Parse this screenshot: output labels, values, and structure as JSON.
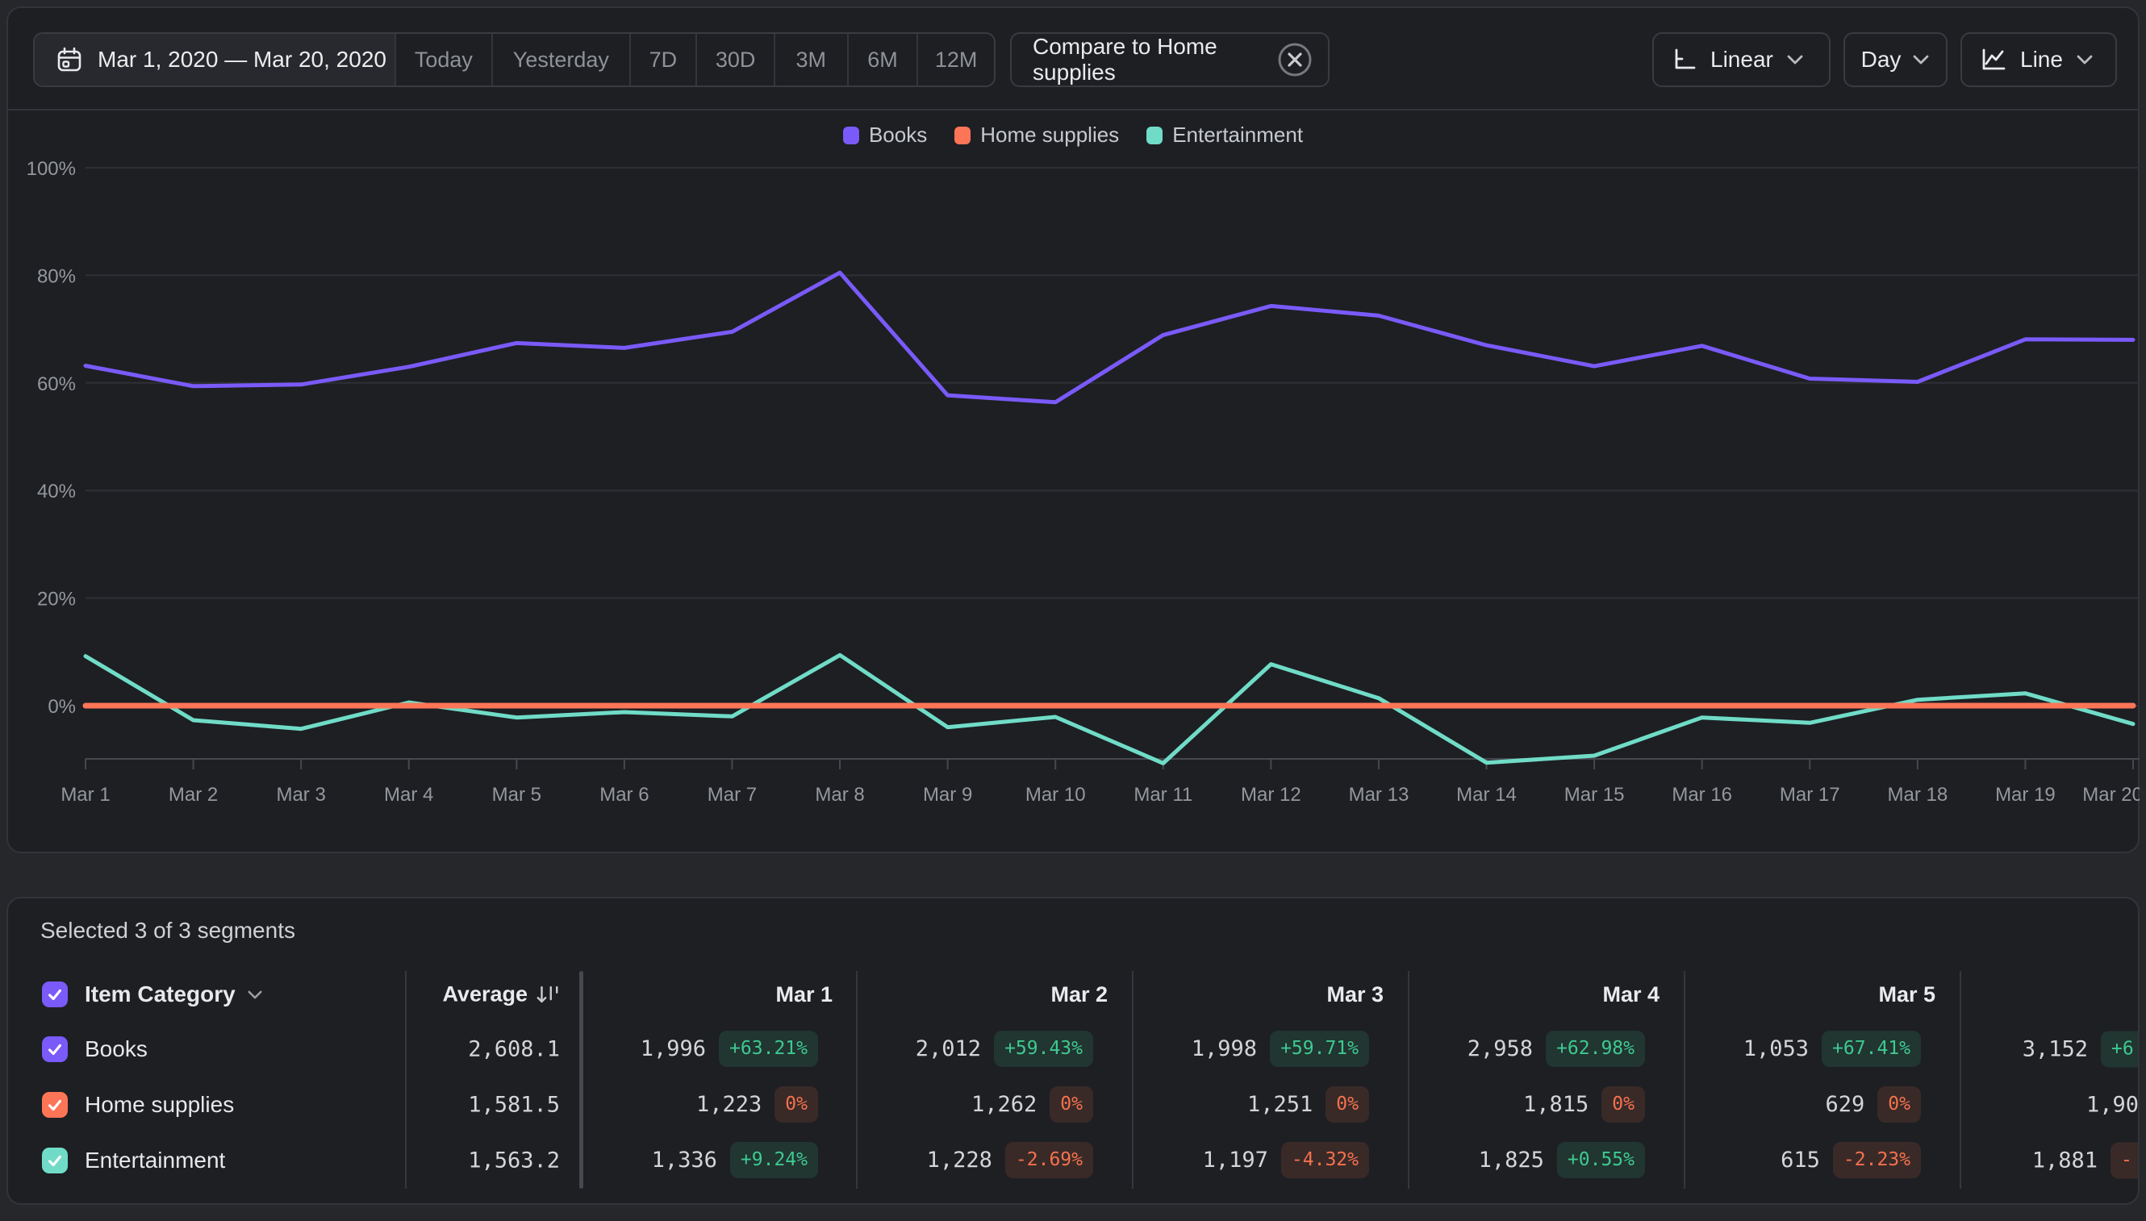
{
  "toolbar": {
    "date_range": "Mar 1, 2020 — Mar 20, 2020",
    "presets": [
      "Today",
      "Yesterday",
      "7D",
      "30D",
      "3M",
      "6M",
      "12M"
    ],
    "compare_label": "Compare to Home supplies",
    "scale_label": "Linear",
    "granularity_label": "Day",
    "chart_type_label": "Line"
  },
  "chart_data": {
    "type": "line",
    "title": "",
    "legend_position": "top",
    "grid": "horizontal",
    "y_axis": {
      "tick_labels": [
        "0%",
        "20%",
        "40%",
        "60%",
        "80%",
        "100%"
      ],
      "ticks": [
        0,
        20,
        40,
        60,
        80,
        100
      ],
      "format": "percent"
    },
    "x": [
      "Mar 1",
      "Mar 2",
      "Mar 3",
      "Mar 4",
      "Mar 5",
      "Mar 6",
      "Mar 7",
      "Mar 8",
      "Mar 9",
      "Mar 10",
      "Mar 11",
      "Mar 12",
      "Mar 13",
      "Mar 14",
      "Mar 15",
      "Mar 16",
      "Mar 17",
      "Mar 18",
      "Mar 19",
      "Mar 20"
    ],
    "series": [
      {
        "name": "Books",
        "color": "#7a5af8",
        "values": [
          63.2,
          59.4,
          59.7,
          63.0,
          67.4,
          66.5,
          69.5,
          80.5,
          57.7,
          56.4,
          68.9,
          74.3,
          72.5,
          67.0,
          63.1,
          66.9,
          60.8,
          60.2,
          68.1,
          68.0
        ]
      },
      {
        "name": "Home supplies",
        "color": "#fc7557",
        "values": [
          0,
          0,
          0,
          0,
          0,
          0,
          0,
          0,
          0,
          0,
          0,
          0,
          0,
          0,
          0,
          0,
          0,
          0,
          0,
          0
        ]
      },
      {
        "name": "Entertainment",
        "color": "#70dcc7",
        "values": [
          9.2,
          -2.7,
          -4.3,
          0.6,
          -2.2,
          -1.2,
          -2.0,
          9.4,
          -4.0,
          -2.1,
          -10.7,
          7.7,
          1.4,
          -10.6,
          -9.3,
          -2.2,
          -3.2,
          1.1,
          2.3,
          -3.4
        ]
      }
    ]
  },
  "table": {
    "selected_text": "Selected 3 of 3 segments",
    "group_column_label": "Item Category",
    "average_column_label": "Average",
    "rows": [
      {
        "name": "Books",
        "color": "#7a5af8",
        "average": "2,608.1"
      },
      {
        "name": "Home supplies",
        "color": "#fc7557",
        "average": "1,581.5"
      },
      {
        "name": "Entertainment",
        "color": "#70dcc7",
        "average": "1,563.2"
      }
    ],
    "day_columns": [
      {
        "label": "Mar 1",
        "cells": [
          {
            "value": "1,996",
            "change": "+63.21%",
            "tone": "green"
          },
          {
            "value": "1,223",
            "change": "0%",
            "tone": "red"
          },
          {
            "value": "1,336",
            "change": "+9.24%",
            "tone": "green"
          }
        ]
      },
      {
        "label": "Mar 2",
        "cells": [
          {
            "value": "2,012",
            "change": "+59.43%",
            "tone": "green"
          },
          {
            "value": "1,262",
            "change": "0%",
            "tone": "red"
          },
          {
            "value": "1,228",
            "change": "-2.69%",
            "tone": "red"
          }
        ]
      },
      {
        "label": "Mar 3",
        "cells": [
          {
            "value": "1,998",
            "change": "+59.71%",
            "tone": "green"
          },
          {
            "value": "1,251",
            "change": "0%",
            "tone": "red"
          },
          {
            "value": "1,197",
            "change": "-4.32%",
            "tone": "red"
          }
        ]
      },
      {
        "label": "Mar 4",
        "cells": [
          {
            "value": "2,958",
            "change": "+62.98%",
            "tone": "green"
          },
          {
            "value": "1,815",
            "change": "0%",
            "tone": "red"
          },
          {
            "value": "1,825",
            "change": "+0.55%",
            "tone": "green"
          }
        ]
      },
      {
        "label": "Mar 5",
        "cells": [
          {
            "value": "1,053",
            "change": "+67.41%",
            "tone": "green"
          },
          {
            "value": "629",
            "change": "0%",
            "tone": "red"
          },
          {
            "value": "615",
            "change": "-2.23%",
            "tone": "red"
          }
        ]
      },
      {
        "label": "",
        "partial": true,
        "cells": [
          {
            "value": "3,152",
            "change": "+6",
            "tone": "green"
          },
          {
            "value": "1,90",
            "change": null,
            "tone": null
          },
          {
            "value": "1,881",
            "change": "-",
            "tone": "red"
          }
        ]
      }
    ]
  },
  "colors": {
    "page_bg": "#26272b",
    "card_bg": "#1d1f23",
    "card_border": "#32343a",
    "gridline": "#2e3036",
    "axis": "#46484e",
    "axis_label": "#94979d",
    "positive": "#3ec990",
    "negative": "#f5714d"
  }
}
